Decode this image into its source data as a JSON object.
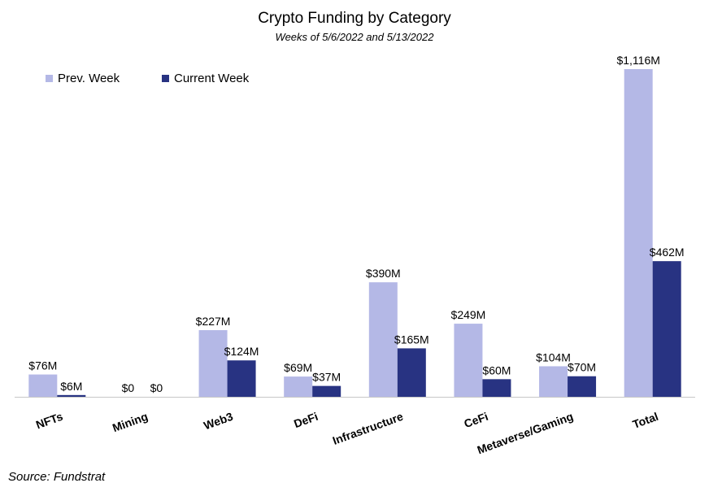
{
  "chart_data": {
    "type": "bar",
    "title": "Crypto Funding by Category",
    "subtitle": "Weeks of 5/6/2022 and 5/13/2022",
    "categories": [
      "NFTs",
      "Mining",
      "Web3",
      "DeFi",
      "Infrastructure",
      "CeFi",
      "Metaverse/Gaming",
      "Total"
    ],
    "series": [
      {
        "name": "Prev. Week",
        "color": "#b4b8e6",
        "values": [
          76,
          0,
          227,
          69,
          390,
          249,
          104,
          1116
        ],
        "labels": [
          "$76M",
          "$0",
          "$227M",
          "$69M",
          "$390M",
          "$249M",
          "$104M",
          "$1,116M"
        ]
      },
      {
        "name": "Current Week",
        "color": "#283382",
        "values": [
          6,
          0,
          124,
          37,
          165,
          60,
          70,
          462
        ],
        "labels": [
          "$6M",
          "$0",
          "$124M",
          "$37M",
          "$165M",
          "$60M",
          "$70M",
          "$462M"
        ]
      }
    ],
    "ylim": [
      0,
      1116
    ],
    "grid": false,
    "legend": "top-left"
  },
  "source": "Source: Fundstrat"
}
